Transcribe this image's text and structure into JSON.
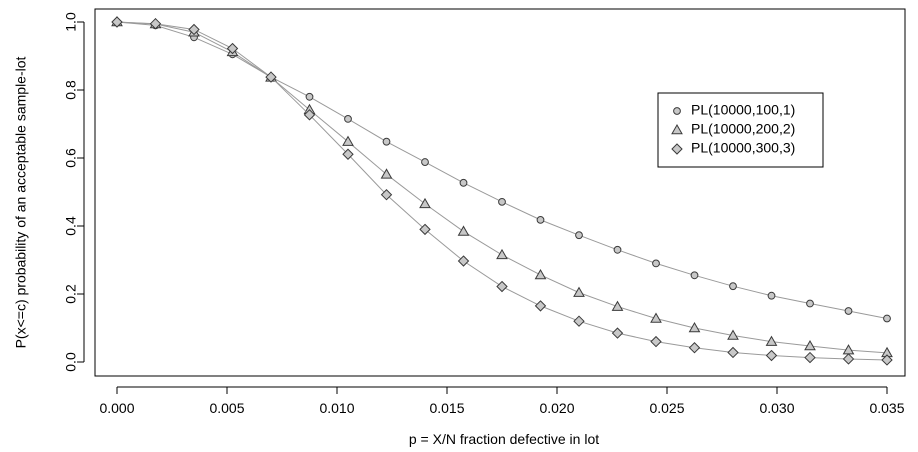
{
  "chart_data": {
    "type": "line",
    "title": "",
    "xlabel": "p = X/N fraction defective in lot",
    "ylabel": "P(x<=c) probability of an acceptable sample-lot",
    "xlim": [
      0.0,
      0.035
    ],
    "ylim": [
      0.0,
      1.0
    ],
    "x_ticks": [
      "0.000",
      "0.005",
      "0.010",
      "0.015",
      "0.020",
      "0.025",
      "0.030",
      "0.035"
    ],
    "y_ticks": [
      "0.0",
      "0.2",
      "0.4",
      "0.6",
      "0.8",
      "1.0"
    ],
    "grid": false,
    "legend_position": "right",
    "x": [
      0.0,
      0.00175,
      0.0035,
      0.00525,
      0.007,
      0.00875,
      0.0105,
      0.01225,
      0.014,
      0.01575,
      0.0175,
      0.01925,
      0.021,
      0.02275,
      0.0245,
      0.02625,
      0.028,
      0.02975,
      0.0315,
      0.03325,
      0.035
    ],
    "series": [
      {
        "name": "PL(10000,100,1)",
        "marker": "circle",
        "values": [
          1.0,
          0.99,
          0.955,
          0.905,
          0.838,
          0.78,
          0.715,
          0.648,
          0.588,
          0.527,
          0.471,
          0.418,
          0.373,
          0.33,
          0.29,
          0.255,
          0.223,
          0.195,
          0.172,
          0.15,
          0.128
        ]
      },
      {
        "name": "PL(10000,200,2)",
        "marker": "triangle",
        "values": [
          1.0,
          0.994,
          0.97,
          0.912,
          0.837,
          0.742,
          0.648,
          0.552,
          0.465,
          0.384,
          0.315,
          0.256,
          0.204,
          0.163,
          0.128,
          0.1,
          0.078,
          0.06,
          0.047,
          0.035,
          0.027
        ]
      },
      {
        "name": "PL(10000,300,3)",
        "marker": "diamond",
        "values": [
          1.0,
          0.995,
          0.978,
          0.922,
          0.838,
          0.727,
          0.611,
          0.492,
          0.39,
          0.297,
          0.222,
          0.165,
          0.12,
          0.085,
          0.06,
          0.042,
          0.028,
          0.019,
          0.013,
          0.009,
          0.006
        ]
      }
    ]
  },
  "colors": {
    "line": "#9a9a9a",
    "marker_stroke": "#3a3a3a",
    "marker_fill": "#c8c8c8",
    "axis": "#000000"
  }
}
